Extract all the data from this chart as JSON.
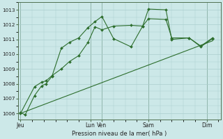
{
  "background_color": "#cce8e8",
  "grid_color": "#aacece",
  "line_color": "#2d6e2d",
  "marker_color": "#2d6e2d",
  "xlabel": "Pression niveau de la mer( hPa )",
  "yticks": [
    1006,
    1007,
    1008,
    1009,
    1010,
    1011,
    1012,
    1013
  ],
  "ylim": [
    1005.6,
    1013.5
  ],
  "xlim": [
    -0.2,
    17.2
  ],
  "day_positions": [
    0,
    6,
    7,
    11,
    16
  ],
  "day_labels": [
    "Jeu",
    "Lun",
    "Ven",
    "Sam",
    "Dim"
  ],
  "line1": {
    "x": [
      0,
      0.4,
      1.2,
      1.8,
      2.2,
      2.7,
      3.5,
      4.2,
      5.0,
      5.8,
      6.4,
      7.0,
      8.0,
      9.5,
      10.5,
      11.0,
      12.5,
      13.0,
      14.5,
      15.5,
      16.5
    ],
    "y": [
      1006.05,
      1005.9,
      1007.2,
      1007.85,
      1008.0,
      1008.5,
      1010.4,
      1010.8,
      1011.1,
      1011.8,
      1012.2,
      1012.55,
      1011.05,
      1010.5,
      1011.9,
      1013.05,
      1013.0,
      1011.0,
      1011.1,
      1010.55,
      1011.1
    ]
  },
  "line2": {
    "x": [
      0,
      1.2,
      1.8,
      2.2,
      2.7,
      3.5,
      4.2,
      5.0,
      5.8,
      6.4,
      7.0,
      8.0,
      9.5,
      10.5,
      11.0,
      12.5,
      13.0,
      14.5,
      15.5,
      16.5
    ],
    "y": [
      1006.0,
      1007.8,
      1008.1,
      1008.2,
      1008.55,
      1009.0,
      1009.5,
      1009.9,
      1010.8,
      1011.85,
      1011.65,
      1011.9,
      1011.95,
      1011.9,
      1012.4,
      1012.35,
      1011.1,
      1011.1,
      1010.5,
      1011.05
    ]
  },
  "line3": {
    "x": [
      0,
      16.5
    ],
    "y": [
      1006.0,
      1010.9
    ]
  }
}
